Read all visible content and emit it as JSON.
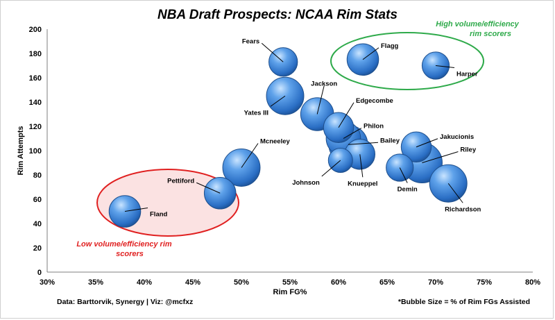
{
  "chart_data": {
    "type": "scatter",
    "title": "NBA Draft Prospects: NCAA Rim Stats",
    "xlabel": "Rim FG%",
    "ylabel": "Rim Attempts",
    "xlim": [
      0.3,
      0.8
    ],
    "ylim": [
      0,
      200
    ],
    "xticks": [
      "30%",
      "35%",
      "40%",
      "45%",
      "50%",
      "55%",
      "60%",
      "65%",
      "70%",
      "75%",
      "80%"
    ],
    "yticks": [
      "0",
      "20",
      "40",
      "60",
      "80",
      "100",
      "120",
      "140",
      "160",
      "180",
      "200"
    ],
    "grid": false,
    "bubble_size_note": "*Bubble Size = % of Rim FGs Assisted",
    "source_note": "Data: Barttorvik, Synergy | Viz: @mcfxz",
    "annotations": {
      "high": [
        "High volume/efficiency",
        "rim scorers"
      ],
      "low": [
        "Low volume/efficiency rim",
        "scorers"
      ]
    },
    "colors": {
      "bubble": "#3f86d6",
      "high_group": "#2eaa4a",
      "low_group": "#e02020",
      "low_fill": "#f9d3d3"
    },
    "points": [
      {
        "name": "Fears",
        "x": 0.543,
        "y": 173,
        "size": 13
      },
      {
        "name": "Flagg",
        "x": 0.625,
        "y": 175,
        "size": 15
      },
      {
        "name": "Harper",
        "x": 0.7,
        "y": 170,
        "size": 12
      },
      {
        "name": "Yates III",
        "x": 0.545,
        "y": 145,
        "size": 19
      },
      {
        "name": "Jackson",
        "x": 0.578,
        "y": 130,
        "size": 16
      },
      {
        "name": "Edgecombe",
        "x": 0.6,
        "y": 119,
        "size": 14
      },
      {
        "name": "Philon",
        "x": 0.605,
        "y": 110,
        "size": 17
      },
      {
        "name": "Bailey",
        "x": 0.61,
        "y": 105,
        "size": 20
      },
      {
        "name": "Johnson",
        "x": 0.602,
        "y": 92,
        "size": 10
      },
      {
        "name": "Knueppel",
        "x": 0.622,
        "y": 97,
        "size": 14
      },
      {
        "name": "Jakucionis",
        "x": 0.68,
        "y": 103,
        "size": 14
      },
      {
        "name": "Riley",
        "x": 0.686,
        "y": 90,
        "size": 21
      },
      {
        "name": "Demin",
        "x": 0.663,
        "y": 86,
        "size": 12
      },
      {
        "name": "Richardson",
        "x": 0.713,
        "y": 73,
        "size": 19
      },
      {
        "name": "Mcneeley",
        "x": 0.5,
        "y": 86,
        "size": 19
      },
      {
        "name": "Pettiford",
        "x": 0.478,
        "y": 65,
        "size": 15
      },
      {
        "name": "Fland",
        "x": 0.38,
        "y": 50,
        "size": 15
      }
    ]
  }
}
